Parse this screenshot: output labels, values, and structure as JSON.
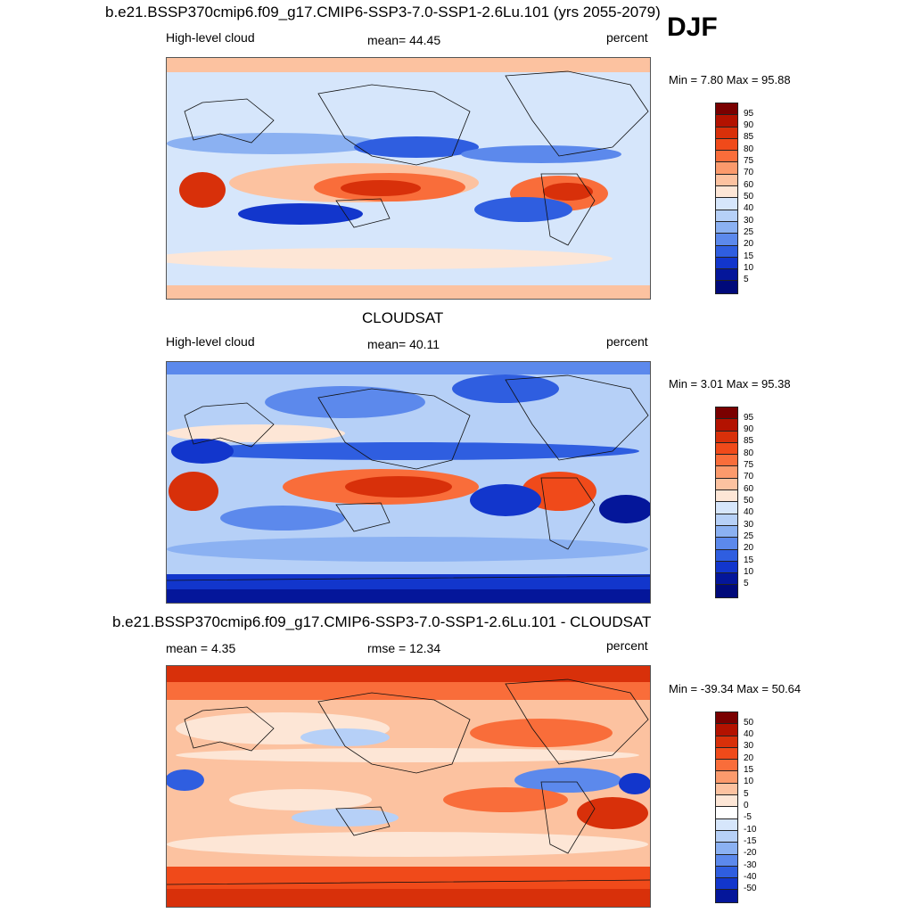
{
  "season": "DJF",
  "panels": [
    {
      "title": "b.e21.BSSP370cmip6.f09_g17.CMIP6-SSP3-7.0-SSP1-2.6Lu.101 (yrs 2055-2079)",
      "left_label": "High-level cloud",
      "center_label": "mean=  44.45",
      "units": "percent",
      "minmax": "Min =   7.80 Max =  95.88",
      "colorbar_ticks": [
        "95",
        "90",
        "85",
        "80",
        "75",
        "70",
        "60",
        "50",
        "40",
        "30",
        "25",
        "20",
        "15",
        "10",
        "5"
      ]
    },
    {
      "title": "CLOUDSAT",
      "left_label": "High-level cloud",
      "center_label": "mean=  40.11",
      "units": "percent",
      "minmax": "Min =   3.01 Max =  95.38",
      "colorbar_ticks": [
        "95",
        "90",
        "85",
        "80",
        "75",
        "70",
        "60",
        "50",
        "40",
        "30",
        "25",
        "20",
        "15",
        "10",
        "5"
      ]
    },
    {
      "title": "b.e21.BSSP370cmip6.f09_g17.CMIP6-SSP3-7.0-SSP1-2.6Lu.101 - CLOUDSAT",
      "left_label": "mean =   4.35",
      "center_label": "rmse =  12.34",
      "units": "percent",
      "minmax": "Min = -39.34 Max =  50.64",
      "colorbar_ticks": [
        "50",
        "40",
        "30",
        "20",
        "15",
        "10",
        "5",
        "0",
        "-5",
        "-10",
        "-15",
        "-20",
        "-30",
        "-40",
        "-50"
      ]
    }
  ],
  "colors": {
    "abs_scale": [
      "#7a0000",
      "#b31200",
      "#d8300a",
      "#f04a1a",
      "#f96d3a",
      "#fb9a6c",
      "#fcc2a0",
      "#fde6d6",
      "#d6e6fb",
      "#b6d0f7",
      "#8bb1f2",
      "#5c89ec",
      "#2f5ee0",
      "#1236cc",
      "#04169a",
      "#000a7a"
    ],
    "diff_scale": [
      "#7a0000",
      "#b31200",
      "#d8300a",
      "#f04a1a",
      "#f96d3a",
      "#fb9a6c",
      "#fcc2a0",
      "#fde6d6",
      "#ffffff",
      "#d6e6fb",
      "#b6d0f7",
      "#8bb1f2",
      "#5c89ec",
      "#2f5ee0",
      "#1236cc",
      "#04169a",
      "#000a7a"
    ]
  }
}
